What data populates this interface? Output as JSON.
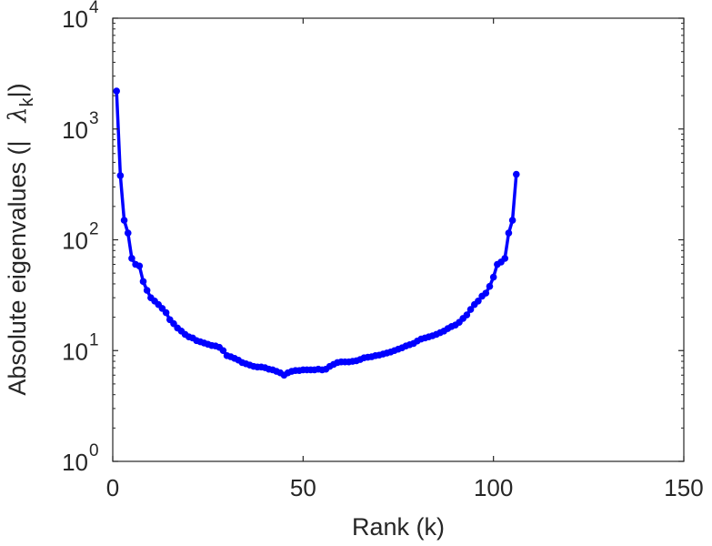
{
  "chart_data": {
    "type": "line",
    "title": "",
    "xlabel": "Rank (k)",
    "ylabel": {
      "prefix": "Absolute eigenvalues (|",
      "symbol": "λ",
      "subscript": "k",
      "suffix": "|)"
    },
    "xlim": [
      0,
      150
    ],
    "ylim": [
      1,
      10000
    ],
    "yscale": "log",
    "xticks": [
      0,
      50,
      100,
      150
    ],
    "yticks": [
      {
        "value": 1,
        "base": "10",
        "exp": "0"
      },
      {
        "value": 10,
        "base": "10",
        "exp": "1"
      },
      {
        "value": 100,
        "base": "10",
        "exp": "2"
      },
      {
        "value": 1000,
        "base": "10",
        "exp": "3"
      },
      {
        "value": 10000,
        "base": "10",
        "exp": "4"
      }
    ],
    "grid": false,
    "legend": "none",
    "series": [
      {
        "color": "#0000ff",
        "marker": "circle",
        "x": [
          1,
          2,
          3,
          4,
          5,
          6,
          7,
          8,
          9,
          10,
          11,
          12,
          13,
          14,
          15,
          16,
          17,
          18,
          19,
          20,
          21,
          22,
          23,
          24,
          25,
          26,
          27,
          28,
          29,
          30,
          31,
          32,
          33,
          34,
          35,
          36,
          37,
          38,
          39,
          40,
          41,
          42,
          43,
          44,
          45,
          46,
          47,
          48,
          49,
          50,
          51,
          52,
          53,
          54,
          55,
          56,
          57,
          58,
          59,
          60,
          61,
          62,
          63,
          64,
          65,
          66,
          67,
          68,
          69,
          70,
          71,
          72,
          73,
          74,
          75,
          76,
          77,
          78,
          79,
          80,
          81,
          82,
          83,
          84,
          85,
          86,
          87,
          88,
          89,
          90,
          91,
          92,
          93,
          94,
          95,
          96,
          97,
          98,
          99,
          100,
          101,
          102,
          103,
          104,
          105,
          106
        ],
        "y": [
          2200,
          380,
          150,
          115,
          68,
          60,
          58,
          42,
          35,
          30,
          28,
          26,
          24,
          22,
          19,
          17.5,
          16,
          15,
          14,
          13.3,
          13,
          12.3,
          12,
          11.7,
          11.4,
          11.1,
          11,
          10.7,
          10,
          9,
          8.8,
          8.5,
          8.2,
          7.8,
          7.6,
          7.4,
          7.2,
          7.1,
          7.1,
          7.0,
          6.8,
          6.7,
          6.5,
          6.3,
          6.0,
          6.3,
          6.5,
          6.6,
          6.6,
          6.7,
          6.7,
          6.7,
          6.7,
          6.8,
          6.7,
          6.8,
          7.2,
          7.5,
          7.8,
          7.9,
          7.9,
          7.9,
          8.0,
          8.1,
          8.3,
          8.6,
          8.7,
          8.8,
          9.0,
          9.1,
          9.3,
          9.5,
          9.7,
          10,
          10.3,
          10.6,
          11,
          11.3,
          11.6,
          12.2,
          12.7,
          13,
          13.3,
          13.6,
          14,
          14.5,
          15,
          15.8,
          16.5,
          17,
          18,
          19.5,
          21,
          23.5,
          26,
          28,
          31,
          33,
          38,
          46,
          60,
          63,
          68,
          115,
          150,
          390
        ]
      }
    ]
  }
}
